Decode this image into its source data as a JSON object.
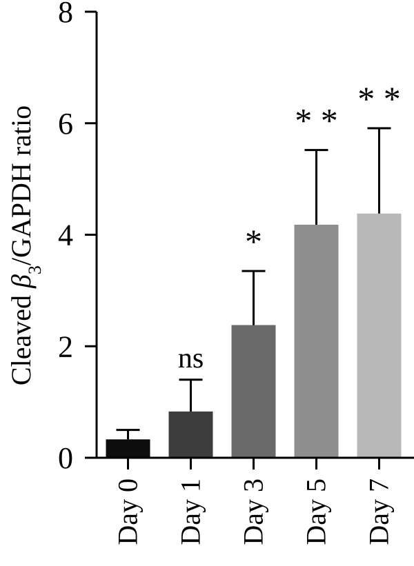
{
  "chart_data": {
    "type": "bar",
    "ylabel": {
      "prefix": "Cleaved ",
      "symbol": "β",
      "subscript": "3",
      "suffix": "/GAPDH ratio"
    },
    "xlabel": "",
    "ylim": [
      0,
      8
    ],
    "yticks": [
      "0",
      "2",
      "4",
      "6",
      "8"
    ],
    "grid": false,
    "categories": [
      "Day 0",
      "Day 1",
      "Day 3",
      "Day 5",
      "Day 7"
    ],
    "values": [
      0.33,
      0.83,
      2.38,
      4.18,
      4.38
    ],
    "error_upper": [
      0.5,
      1.4,
      3.35,
      5.52,
      5.91
    ],
    "significance": [
      "",
      "ns",
      "*",
      "* *",
      "* *"
    ],
    "colors": [
      "#0d0d0d",
      "#3d3d3d",
      "#696969",
      "#8e8e8e",
      "#b8b8b8"
    ]
  }
}
